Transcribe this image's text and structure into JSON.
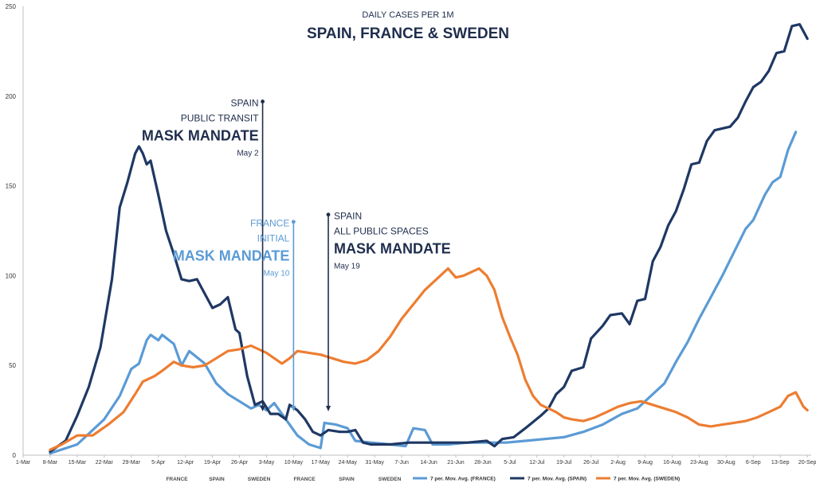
{
  "chart_data": {
    "type": "line",
    "subtitle": "DAILY CASES PER 1M",
    "title": "SPAIN, FRANCE & SWEDEN",
    "ylim": [
      0,
      250
    ],
    "y_ticks": [
      0,
      50,
      100,
      150,
      200,
      250
    ],
    "x_tick_labels": [
      "1-Mar",
      "8-Mar",
      "15-Mar",
      "22-Mar",
      "29-Mar",
      "5-Apr",
      "12-Apr",
      "19-Apr",
      "26-Apr",
      "3-May",
      "10-May",
      "17-May",
      "24-May",
      "31-May",
      "7-Jun",
      "14-Jun",
      "21-Jun",
      "28-Jun",
      "5-Jul",
      "12-Jul",
      "19-Jul",
      "26-Jul",
      "2-Aug",
      "9-Aug",
      "16-Aug",
      "23-Aug",
      "30-Aug",
      "6-Sep",
      "13-Sep",
      "20-Sep"
    ],
    "x_start_day": 0,
    "grid": false,
    "colors": {
      "france": "#5b9bd5",
      "spain": "#1f3864",
      "sweden": "#ed7d31"
    },
    "series": [
      {
        "key": "france",
        "name": "7 per. Mov. Avg. (FRANCE)",
        "points": [
          [
            7,
            1
          ],
          [
            14,
            6
          ],
          [
            21,
            20
          ],
          [
            25,
            33
          ],
          [
            28,
            48
          ],
          [
            30,
            51
          ],
          [
            32,
            64
          ],
          [
            33,
            67
          ],
          [
            35,
            64
          ],
          [
            36,
            67
          ],
          [
            39,
            62
          ],
          [
            41,
            50
          ],
          [
            43,
            58
          ],
          [
            47,
            51
          ],
          [
            50,
            40
          ],
          [
            53,
            34
          ],
          [
            56,
            30
          ],
          [
            59,
            26
          ],
          [
            61,
            28
          ],
          [
            63,
            25
          ],
          [
            65,
            29
          ],
          [
            68,
            20
          ],
          [
            71,
            11
          ],
          [
            74,
            6
          ],
          [
            77,
            4
          ],
          [
            78,
            18
          ],
          [
            81,
            17
          ],
          [
            84,
            15
          ],
          [
            86,
            8
          ],
          [
            90,
            7
          ],
          [
            95,
            6
          ],
          [
            99,
            5
          ],
          [
            101,
            15
          ],
          [
            104,
            14
          ],
          [
            106,
            6
          ],
          [
            110,
            6
          ],
          [
            115,
            7
          ],
          [
            120,
            7
          ],
          [
            125,
            7
          ],
          [
            130,
            8
          ],
          [
            135,
            9
          ],
          [
            140,
            10
          ],
          [
            145,
            13
          ],
          [
            150,
            17
          ],
          [
            155,
            23
          ],
          [
            159,
            26
          ],
          [
            163,
            34
          ],
          [
            166,
            40
          ],
          [
            169,
            52
          ],
          [
            172,
            63
          ],
          [
            175,
            76
          ],
          [
            178,
            88
          ],
          [
            181,
            100
          ],
          [
            184,
            113
          ],
          [
            187,
            126
          ],
          [
            189,
            131
          ],
          [
            192,
            145
          ],
          [
            194,
            152
          ],
          [
            196,
            155
          ],
          [
            198,
            170
          ],
          [
            200,
            180
          ]
        ]
      },
      {
        "key": "spain",
        "name": "7 per. Mov. Avg. (SPAIN)",
        "points": [
          [
            7,
            2
          ],
          [
            11,
            8
          ],
          [
            14,
            22
          ],
          [
            17,
            38
          ],
          [
            20,
            60
          ],
          [
            23,
            98
          ],
          [
            25,
            138
          ],
          [
            27,
            152
          ],
          [
            29,
            168
          ],
          [
            30,
            172
          ],
          [
            31,
            168
          ],
          [
            32,
            162
          ],
          [
            33,
            164
          ],
          [
            35,
            145
          ],
          [
            37,
            125
          ],
          [
            39,
            112
          ],
          [
            41,
            98
          ],
          [
            43,
            97
          ],
          [
            45,
            98
          ],
          [
            47,
            90
          ],
          [
            49,
            82
          ],
          [
            51,
            84
          ],
          [
            53,
            88
          ],
          [
            55,
            70
          ],
          [
            56,
            68
          ],
          [
            58,
            44
          ],
          [
            60,
            28
          ],
          [
            62,
            30
          ],
          [
            64,
            23
          ],
          [
            66,
            23
          ],
          [
            68,
            20
          ],
          [
            69,
            28
          ],
          [
            71,
            25
          ],
          [
            73,
            20
          ],
          [
            75,
            13
          ],
          [
            77,
            11
          ],
          [
            79,
            14
          ],
          [
            82,
            13
          ],
          [
            84,
            13
          ],
          [
            86,
            14
          ],
          [
            88,
            7
          ],
          [
            90,
            6
          ],
          [
            95,
            6
          ],
          [
            100,
            7
          ],
          [
            105,
            7
          ],
          [
            110,
            7
          ],
          [
            115,
            7
          ],
          [
            120,
            8
          ],
          [
            122,
            5
          ],
          [
            124,
            9
          ],
          [
            127,
            10
          ],
          [
            130,
            15
          ],
          [
            134,
            22
          ],
          [
            136,
            26
          ],
          [
            138,
            34
          ],
          [
            140,
            38
          ],
          [
            142,
            47
          ],
          [
            145,
            49
          ],
          [
            147,
            65
          ],
          [
            150,
            72
          ],
          [
            152,
            78
          ],
          [
            155,
            79
          ],
          [
            157,
            73
          ],
          [
            159,
            86
          ],
          [
            161,
            87
          ],
          [
            163,
            108
          ],
          [
            165,
            116
          ],
          [
            167,
            128
          ],
          [
            169,
            136
          ],
          [
            171,
            148
          ],
          [
            173,
            162
          ],
          [
            175,
            163
          ],
          [
            177,
            175
          ],
          [
            179,
            181
          ],
          [
            181,
            182
          ],
          [
            183,
            183
          ],
          [
            185,
            188
          ],
          [
            187,
            197
          ],
          [
            189,
            205
          ],
          [
            191,
            208
          ],
          [
            193,
            214
          ],
          [
            195,
            224
          ],
          [
            197,
            225
          ],
          [
            199,
            239
          ],
          [
            201,
            240
          ],
          [
            203,
            232
          ]
        ]
      },
      {
        "key": "sweden",
        "name": "7 per. Mov. Avg. (SWEDEN)",
        "points": [
          [
            7,
            3
          ],
          [
            10,
            6
          ],
          [
            14,
            11
          ],
          [
            18,
            11
          ],
          [
            22,
            17
          ],
          [
            26,
            24
          ],
          [
            29,
            34
          ],
          [
            31,
            41
          ],
          [
            34,
            44
          ],
          [
            36,
            47
          ],
          [
            39,
            52
          ],
          [
            41,
            50
          ],
          [
            44,
            49
          ],
          [
            47,
            50
          ],
          [
            50,
            54
          ],
          [
            53,
            58
          ],
          [
            56,
            59
          ],
          [
            59,
            61
          ],
          [
            61,
            59
          ],
          [
            63,
            57
          ],
          [
            65,
            54
          ],
          [
            67,
            51
          ],
          [
            69,
            54
          ],
          [
            71,
            58
          ],
          [
            74,
            57
          ],
          [
            77,
            56
          ],
          [
            80,
            54
          ],
          [
            83,
            52
          ],
          [
            86,
            51
          ],
          [
            89,
            53
          ],
          [
            92,
            58
          ],
          [
            95,
            66
          ],
          [
            98,
            76
          ],
          [
            101,
            84
          ],
          [
            104,
            92
          ],
          [
            106,
            96
          ],
          [
            108,
            100
          ],
          [
            110,
            104
          ],
          [
            112,
            99
          ],
          [
            114,
            100
          ],
          [
            116,
            102
          ],
          [
            118,
            104
          ],
          [
            120,
            100
          ],
          [
            122,
            92
          ],
          [
            124,
            77
          ],
          [
            126,
            66
          ],
          [
            128,
            56
          ],
          [
            130,
            42
          ],
          [
            132,
            33
          ],
          [
            134,
            28
          ],
          [
            136,
            26
          ],
          [
            138,
            24
          ],
          [
            140,
            21
          ],
          [
            142,
            20
          ],
          [
            145,
            19
          ],
          [
            148,
            21
          ],
          [
            151,
            24
          ],
          [
            154,
            27
          ],
          [
            157,
            29
          ],
          [
            160,
            30
          ],
          [
            163,
            28
          ],
          [
            166,
            26
          ],
          [
            169,
            24
          ],
          [
            172,
            21
          ],
          [
            175,
            17
          ],
          [
            178,
            16
          ],
          [
            181,
            17
          ],
          [
            184,
            18
          ],
          [
            187,
            19
          ],
          [
            190,
            21
          ],
          [
            193,
            24
          ],
          [
            196,
            27
          ],
          [
            198,
            33
          ],
          [
            200,
            35
          ],
          [
            202,
            27
          ],
          [
            203,
            25
          ]
        ]
      }
    ],
    "annotations": [
      {
        "key": "spain1",
        "day": 62,
        "top": 197,
        "color": "#1f2d4d",
        "lines": [
          "SPAIN",
          "PUBLIC TRANSIT"
        ],
        "big": "MASK MANDATE",
        "date": "May 2"
      },
      {
        "key": "france1",
        "day": 70,
        "top": 130,
        "color": "#5b9bd5",
        "lines": [
          "FRANCE",
          "INITIAL"
        ],
        "big": "MASK MANDATE",
        "date": "May 10"
      },
      {
        "key": "spain2",
        "day": 79,
        "top": 134,
        "color": "#1f2d4d",
        "lines": [
          "SPAIN",
          "ALL PUBLIC SPACES"
        ],
        "big": "MASK MANDATE",
        "date": "May 19"
      }
    ],
    "bottom_categories": [
      "FRANCE",
      "SPAIN",
      "SWEDEN",
      "FRANCE",
      "SPAIN",
      "SWEDEN"
    ]
  }
}
